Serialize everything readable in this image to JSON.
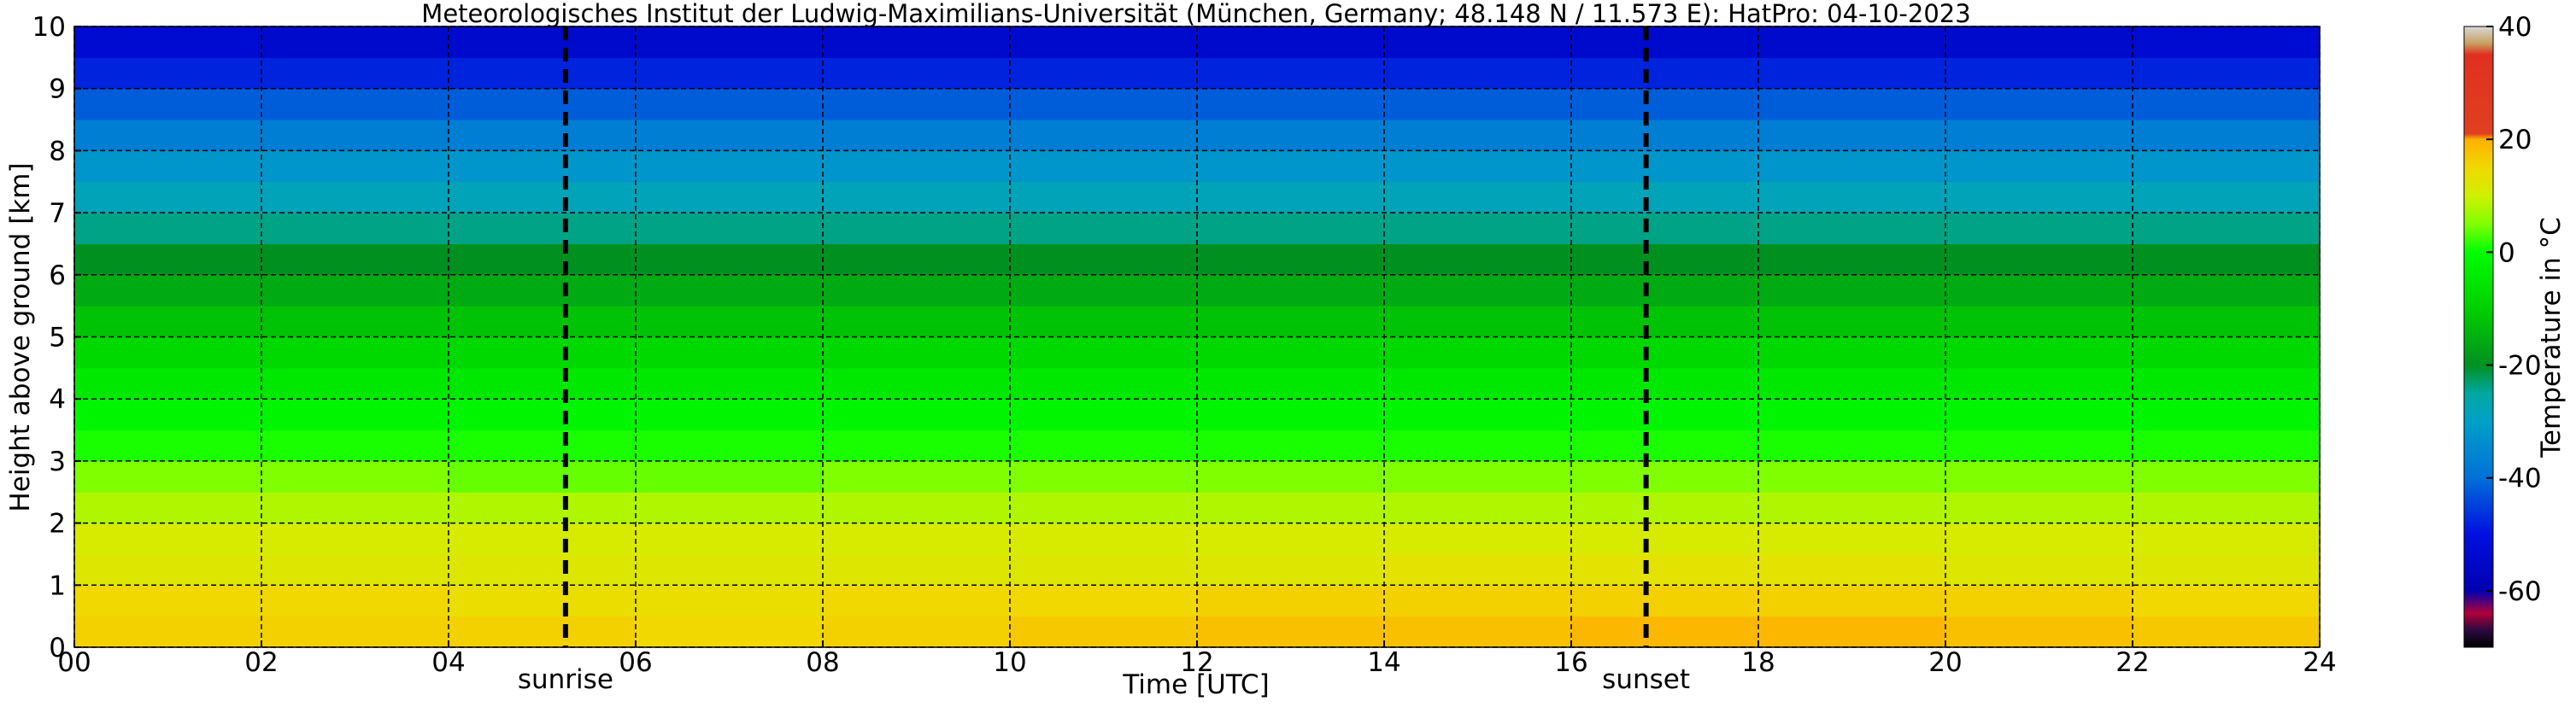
{
  "chart_data": {
    "type": "heatmap",
    "title": "Meteorologisches Institut der Ludwig-Maximilians-Universität (München, Germany; 48.148 N / 11.573 E):    HatPro: 04-10-2023",
    "xlabel": "Time [UTC]",
    "ylabel": "Height above ground [km]",
    "x": [
      0,
      2,
      4,
      6,
      8,
      10,
      12,
      14,
      16,
      18,
      20,
      22,
      24
    ],
    "y": [
      0,
      0.5,
      1,
      1.5,
      2,
      2.5,
      3,
      3.5,
      4,
      4.5,
      5,
      5.5,
      6,
      6.5,
      7,
      7.5,
      8,
      8.5,
      9,
      9.5,
      10
    ],
    "z": [
      [
        16,
        16,
        16,
        15,
        16,
        17,
        18,
        18,
        19,
        19,
        18,
        17
      ],
      [
        15,
        15,
        14,
        14,
        15,
        15,
        16,
        16,
        16,
        16,
        16,
        15
      ],
      [
        12,
        12,
        12,
        12,
        12,
        12,
        12,
        13,
        13,
        13,
        12,
        12
      ],
      [
        11,
        11,
        11,
        11,
        11,
        11,
        11,
        11,
        11,
        11,
        11,
        11
      ],
      [
        8,
        8,
        8,
        8,
        8,
        8,
        8,
        8,
        8,
        8,
        8,
        8
      ],
      [
        5,
        5,
        4,
        4,
        5,
        5,
        5,
        5,
        5,
        5,
        5,
        5
      ],
      [
        1,
        1,
        1,
        1,
        1,
        1,
        1,
        1,
        1,
        1,
        1,
        1
      ],
      [
        -2,
        -2,
        -2,
        -2,
        -2,
        -2,
        -2,
        -2,
        -2,
        -2,
        -2,
        -2
      ],
      [
        -5,
        -5,
        -5,
        -5,
        -5,
        -5,
        -5,
        -5,
        -5,
        -5,
        -5,
        -5
      ],
      [
        -8,
        -8,
        -8,
        -8,
        -8,
        -8,
        -8,
        -8,
        -8,
        -8,
        -8,
        -8
      ],
      [
        -12,
        -12,
        -12,
        -12,
        -12,
        -12,
        -12,
        -12,
        -12,
        -12,
        -12,
        -12
      ],
      [
        -16,
        -16,
        -16,
        -16,
        -16,
        -16,
        -16,
        -16,
        -16,
        -16,
        -16,
        -16
      ],
      [
        -20,
        -20,
        -20,
        -20,
        -20,
        -20,
        -20,
        -20,
        -20,
        -20,
        -20,
        -20
      ],
      [
        -24,
        -24,
        -24,
        -24,
        -24,
        -24,
        -24,
        -24,
        -24,
        -24,
        -24,
        -24
      ],
      [
        -28,
        -28,
        -28,
        -28,
        -28,
        -28,
        -28,
        -28,
        -28,
        -28,
        -28,
        -28
      ],
      [
        -32,
        -32,
        -32,
        -32,
        -32,
        -32,
        -32,
        -32,
        -32,
        -32,
        -32,
        -32
      ],
      [
        -37,
        -37,
        -37,
        -37,
        -37,
        -37,
        -37,
        -37,
        -37,
        -37,
        -37,
        -37
      ],
      [
        -42,
        -42,
        -42,
        -42,
        -42,
        -42,
        -42,
        -42,
        -42,
        -42,
        -42,
        -42
      ],
      [
        -48,
        -48,
        -48,
        -48,
        -48,
        -48,
        -48,
        -48,
        -48,
        -48,
        -48,
        -48
      ],
      [
        -53,
        -54,
        -54,
        -54,
        -54,
        -54,
        -54,
        -54,
        -54,
        -54,
        -54,
        -53
      ]
    ],
    "xlim": [
      0,
      24
    ],
    "ylim": [
      0,
      10
    ],
    "xticks": [
      {
        "value": 0,
        "label": "00"
      },
      {
        "value": 2,
        "label": "02"
      },
      {
        "value": 4,
        "label": "04"
      },
      {
        "value": 6,
        "label": "06"
      },
      {
        "value": 8,
        "label": "08"
      },
      {
        "value": 10,
        "label": "10"
      },
      {
        "value": 12,
        "label": "12"
      },
      {
        "value": 14,
        "label": "14"
      },
      {
        "value": 16,
        "label": "16"
      },
      {
        "value": 18,
        "label": "18"
      },
      {
        "value": 20,
        "label": "20"
      },
      {
        "value": 22,
        "label": "22"
      },
      {
        "value": 24,
        "label": "24"
      }
    ],
    "yticks": [
      0,
      1,
      2,
      3,
      4,
      5,
      6,
      7,
      8,
      9,
      10
    ],
    "grid": true,
    "annotations": [
      {
        "text": "sunrise",
        "x": 5.25
      },
      {
        "text": "sunset",
        "x": 16.8
      }
    ],
    "colorbar": {
      "label": "Temperature in °C",
      "lim": [
        -70,
        40
      ],
      "ticks": [
        40,
        20,
        0,
        -20,
        -40,
        -60
      ]
    },
    "colormap": [
      {
        "value": -70,
        "color": "#000000"
      },
      {
        "value": -67,
        "color": "#2a0a40"
      },
      {
        "value": -64,
        "color": "#b0003a"
      },
      {
        "value": -60,
        "color": "#0000b0"
      },
      {
        "value": -50,
        "color": "#0010e0"
      },
      {
        "value": -40,
        "color": "#0070d8"
      },
      {
        "value": -30,
        "color": "#00a0c8"
      },
      {
        "value": -25,
        "color": "#00a8a0"
      },
      {
        "value": -20,
        "color": "#009020"
      },
      {
        "value": -10,
        "color": "#00d000"
      },
      {
        "value": 0,
        "color": "#00ff00"
      },
      {
        "value": 5,
        "color": "#80ff00"
      },
      {
        "value": 10,
        "color": "#d0f000"
      },
      {
        "value": 15,
        "color": "#f0d800"
      },
      {
        "value": 20,
        "color": "#ffb000"
      },
      {
        "value": 21,
        "color": "#e04020"
      },
      {
        "value": 35,
        "color": "#e03020"
      },
      {
        "value": 37,
        "color": "#c8a060"
      },
      {
        "value": 40,
        "color": "#d8d8d8"
      }
    ]
  }
}
